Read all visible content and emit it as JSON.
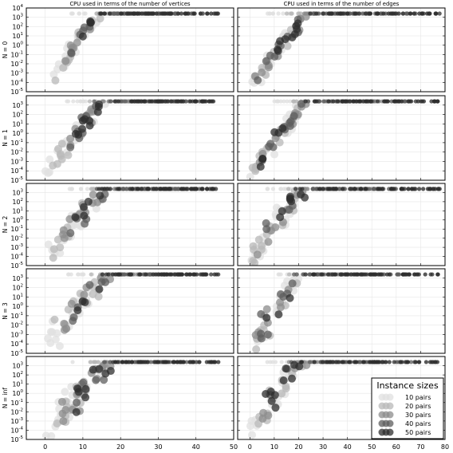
{
  "chart_data": {
    "type": "scatter",
    "columns": [
      {
        "title": "CPU used in terms of the number of vertices",
        "xlim": [
          -5,
          50
        ],
        "xticks": [
          0,
          10,
          20,
          30,
          40,
          50
        ]
      },
      {
        "title": "CPU used in terms of the number of edges",
        "xlim": [
          -5,
          80
        ],
        "xticks": [
          0,
          10,
          20,
          30,
          40,
          50,
          60,
          70,
          80
        ]
      }
    ],
    "rows": [
      {
        "label": "N = 0"
      },
      {
        "label": "N = 1"
      },
      {
        "label": "N = 2"
      },
      {
        "label": "N = 3"
      },
      {
        "label": "N = inf"
      }
    ],
    "y_scale": "log",
    "ylim_exponent": [
      -5,
      4
    ],
    "ytick_base": "10",
    "ytick_exponents": [
      "-5",
      "-3",
      "-1",
      "1",
      "3"
    ],
    "ytick_exponents_top": [
      "-4",
      "-2",
      "0",
      "2",
      "4"
    ],
    "ytick_exponents_mid": [
      "-3",
      "-1",
      "1",
      "3"
    ],
    "grid": true,
    "timeout_exponent": 3.4,
    "legend": {
      "title": "Instance sizes",
      "position": "bottom-right of last right panel",
      "entries": [
        {
          "label": "10 pairs",
          "color": "#e0e0e0"
        },
        {
          "label": "20 pairs",
          "color": "#b8b8b8"
        },
        {
          "label": "30 pairs",
          "color": "#8c8c8c"
        },
        {
          "label": "40 pairs",
          "color": "#5e5e5e"
        },
        {
          "label": "50 pairs",
          "color": "#2e2e2e"
        }
      ]
    },
    "series": [
      {
        "name": "10 pairs",
        "color": "#e0e0e0",
        "vertices_range": [
          0,
          16
        ],
        "edges_range": [
          0,
          20
        ]
      },
      {
        "name": "20 pairs",
        "color": "#b8b8b8",
        "vertices_range": [
          2,
          30
        ],
        "edges_range": [
          1,
          40
        ]
      },
      {
        "name": "30 pairs",
        "color": "#8c8c8c",
        "vertices_range": [
          4,
          36
        ],
        "edges_range": [
          2,
          55
        ]
      },
      {
        "name": "40 pairs",
        "color": "#5e5e5e",
        "vertices_range": [
          6,
          42
        ],
        "edges_range": [
          3,
          68
        ]
      },
      {
        "name": "50 pairs",
        "color": "#2e2e2e",
        "vertices_range": [
          8,
          46
        ],
        "edges_range": [
          4,
          78
        ]
      }
    ]
  }
}
